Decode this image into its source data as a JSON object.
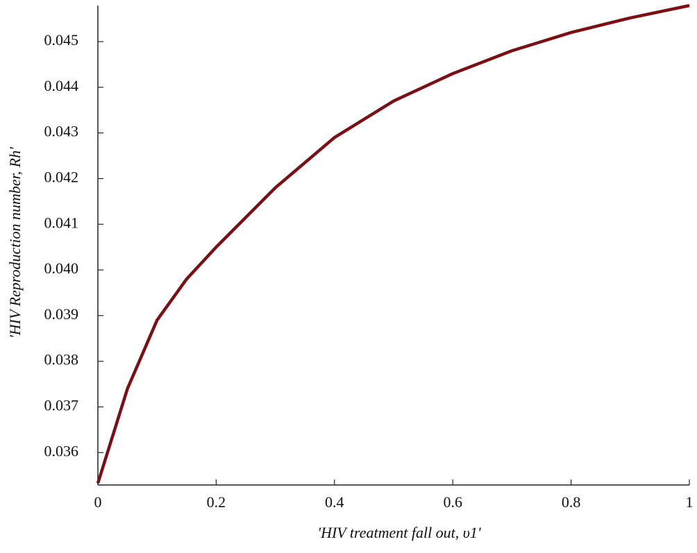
{
  "chart_data": {
    "type": "line",
    "x_label": "'HIV treatment fall out, υ1'",
    "y_label": "'HIV Reproduction number, Rh'",
    "x": [
      0,
      0.05,
      0.1,
      0.15,
      0.2,
      0.3,
      0.4,
      0.5,
      0.6,
      0.7,
      0.8,
      0.9,
      1
    ],
    "series": [
      {
        "color": "#7b0f14",
        "values": [
          0.03533,
          0.0374,
          0.0389,
          0.0398,
          0.0405,
          0.0418,
          0.0429,
          0.0437,
          0.0443,
          0.0448,
          0.0452,
          0.04552,
          0.04579
        ]
      }
    ],
    "xlim": [
      0,
      1
    ],
    "ylim": [
      0.03529,
      0.04579
    ],
    "xticks": [
      0,
      0.2,
      0.4,
      0.6,
      0.8,
      1
    ],
    "yticks": [
      0.036,
      0.037,
      0.038,
      0.039,
      {
        "value": 0.04,
        "label": "0.040"
      },
      0.041,
      0.042,
      0.043,
      0.044,
      0.045
    ],
    "grid": false
  }
}
